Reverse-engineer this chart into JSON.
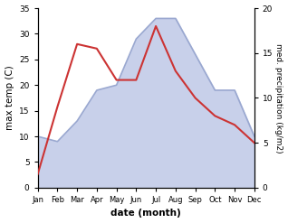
{
  "months": [
    "Jan",
    "Feb",
    "Mar",
    "Apr",
    "May",
    "Jun",
    "Jul",
    "Aug",
    "Sep",
    "Oct",
    "Nov",
    "Dec"
  ],
  "month_x": [
    1,
    2,
    3,
    4,
    5,
    6,
    7,
    8,
    9,
    10,
    11,
    12
  ],
  "temp": [
    10,
    9,
    13,
    19,
    20,
    29,
    33,
    33,
    26,
    19,
    19,
    10
  ],
  "precip": [
    1.5,
    9,
    16,
    15.5,
    12,
    12,
    18,
    13,
    10,
    8,
    7,
    5
  ],
  "temp_color": "#9aa8d0",
  "temp_fill_color": "#c8d0ea",
  "precip_color": "#cc3333",
  "xlabel": "date (month)",
  "ylabel_left": "max temp (C)",
  "ylabel_right": "med. precipitation (kg/m2)",
  "ylim_left": [
    0,
    35
  ],
  "ylim_right": [
    0,
    20
  ],
  "yticks_left": [
    0,
    5,
    10,
    15,
    20,
    25,
    30,
    35
  ],
  "yticks_right": [
    0,
    5,
    10,
    15,
    20
  ],
  "bg_color": "#ffffff"
}
